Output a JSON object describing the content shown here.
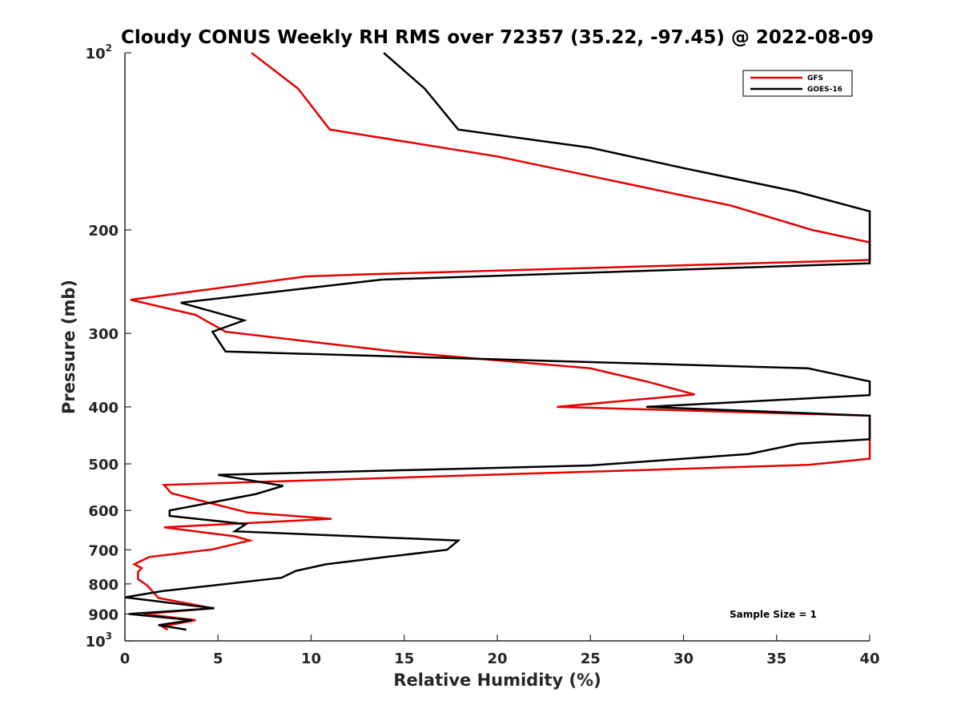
{
  "chart_data": {
    "type": "line",
    "title": "Cloudy CONUS Weekly RH RMS over 72357 (35.22, -97.45) @ 2022-08-09",
    "xlabel": "Relative Humidity (%)",
    "ylabel": "Pressure (mb)",
    "xlim": [
      0,
      40
    ],
    "ylim": [
      100,
      1000
    ],
    "yscale": "log",
    "y_reversed": true,
    "grid": false,
    "legend_position": "top-right",
    "x_ticks": [
      "0",
      "5",
      "10",
      "15",
      "20",
      "25",
      "30",
      "35",
      "40"
    ],
    "y_ticks": [
      {
        "value": 100,
        "label": "10",
        "exp": "2"
      },
      {
        "value": 200,
        "label": "200",
        "exp": ""
      },
      {
        "value": 300,
        "label": "300",
        "exp": ""
      },
      {
        "value": 400,
        "label": "400",
        "exp": ""
      },
      {
        "value": 500,
        "label": "500",
        "exp": ""
      },
      {
        "value": 600,
        "label": "600",
        "exp": ""
      },
      {
        "value": 700,
        "label": "700",
        "exp": ""
      },
      {
        "value": 800,
        "label": "800",
        "exp": ""
      },
      {
        "value": 900,
        "label": "900",
        "exp": ""
      },
      {
        "value": 1000,
        "label": "10",
        "exp": "3"
      }
    ],
    "annotation": "Sample Size = 1",
    "series": [
      {
        "name": "GFS",
        "color": "#e60000",
        "points": [
          [
            6.8,
            100
          ],
          [
            9.3,
            115
          ],
          [
            11.0,
            135
          ],
          [
            20.0,
            150
          ],
          [
            32.6,
            182
          ],
          [
            36.9,
            200
          ],
          [
            40.0,
            210
          ],
          [
            40.0,
            225
          ],
          [
            13.0,
            238
          ],
          [
            9.7,
            240
          ],
          [
            0.3,
            263
          ],
          [
            3.8,
            279
          ],
          [
            5.4,
            298
          ],
          [
            14.5,
            322
          ],
          [
            25.0,
            344
          ],
          [
            28.0,
            362
          ],
          [
            30.6,
            381
          ],
          [
            23.2,
            400
          ],
          [
            40.0,
            414
          ],
          [
            40.0,
            490
          ],
          [
            36.7,
            502
          ],
          [
            2.1,
            543
          ],
          [
            2.5,
            561
          ],
          [
            6.6,
            605
          ],
          [
            11.1,
            620
          ],
          [
            2.1,
            641
          ],
          [
            5.9,
            664
          ],
          [
            6.7,
            675
          ],
          [
            4.7,
            699
          ],
          [
            1.3,
            720
          ],
          [
            0.5,
            741
          ],
          [
            0.9,
            752
          ],
          [
            0.7,
            764
          ],
          [
            0.7,
            785
          ],
          [
            1.2,
            805
          ],
          [
            1.8,
            845
          ],
          [
            4.7,
            880
          ],
          [
            1.0,
            900
          ],
          [
            3.8,
            922
          ],
          [
            2.0,
            945
          ],
          [
            2.3,
            957
          ]
        ]
      },
      {
        "name": "GOES-16",
        "color": "#000000",
        "points": [
          [
            13.9,
            100
          ],
          [
            16.1,
            115
          ],
          [
            17.9,
            135
          ],
          [
            25.0,
            145
          ],
          [
            30.0,
            157
          ],
          [
            36.0,
            172
          ],
          [
            40.0,
            186
          ],
          [
            40.0,
            228
          ],
          [
            13.8,
            243
          ],
          [
            3.0,
            266
          ],
          [
            6.4,
            285
          ],
          [
            4.7,
            298
          ],
          [
            5.4,
            322
          ],
          [
            36.7,
            344
          ],
          [
            40.0,
            362
          ],
          [
            40.0,
            382
          ],
          [
            28.0,
            400
          ],
          [
            40.0,
            414
          ],
          [
            40.0,
            454
          ],
          [
            36.2,
            462
          ],
          [
            33.5,
            481
          ],
          [
            25.0,
            503
          ],
          [
            5.0,
            522
          ],
          [
            8.5,
            545
          ],
          [
            7.0,
            563
          ],
          [
            2.4,
            600
          ],
          [
            2.4,
            613
          ],
          [
            6.5,
            633
          ],
          [
            5.9,
            651
          ],
          [
            17.9,
            675
          ],
          [
            17.3,
            700
          ],
          [
            14.0,
            720
          ],
          [
            10.8,
            741
          ],
          [
            9.2,
            760
          ],
          [
            8.4,
            781
          ],
          [
            2.0,
            823
          ],
          [
            0.0,
            843
          ],
          [
            4.8,
            880
          ],
          [
            0.2,
            900
          ],
          [
            3.6,
            922
          ],
          [
            1.8,
            940
          ],
          [
            3.3,
            957
          ]
        ]
      }
    ]
  }
}
